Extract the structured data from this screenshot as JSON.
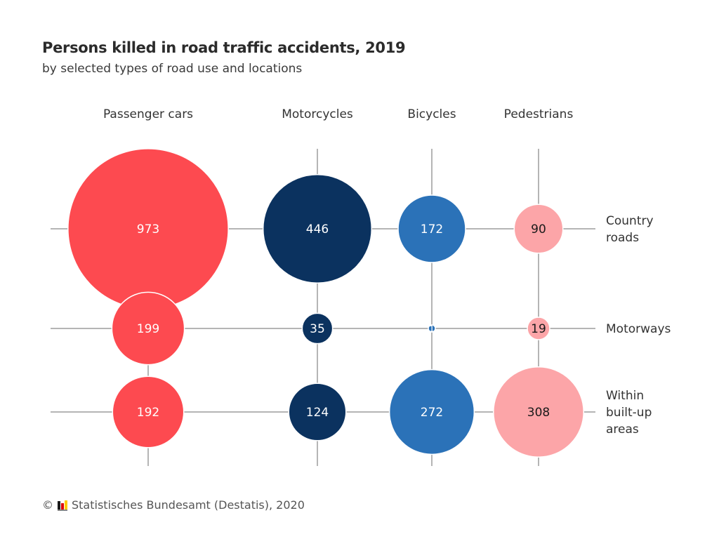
{
  "chart_data": {
    "type": "bubble-matrix",
    "title": "Persons killed in road traffic accidents, 2019",
    "subtitle": "by selected types of road use and locations",
    "columns": [
      "Passenger cars",
      "Motorcycles",
      "Bicycles",
      "Pedestrians"
    ],
    "rows": [
      "Country roads",
      "Motorways",
      "Within built-up areas"
    ],
    "row_label_lines": [
      [
        "Country",
        "roads"
      ],
      [
        "Motorways"
      ],
      [
        "Within",
        "built-up",
        "areas"
      ]
    ],
    "values": [
      [
        973,
        446,
        172,
        90
      ],
      [
        199,
        35,
        1,
        19
      ],
      [
        192,
        124,
        272,
        308
      ]
    ],
    "column_colors": [
      "#fd4a50",
      "#0b325f",
      "#2b72b8",
      "#fca5a8"
    ],
    "label_colors": [
      "#ffffff",
      "#ffffff",
      "#ffffff",
      "#1a1a1a"
    ],
    "size_encoding": "area proportional to value"
  },
  "footer": {
    "copyright": "©",
    "source": "Statistisches Bundesamt (Destatis), 2020"
  }
}
